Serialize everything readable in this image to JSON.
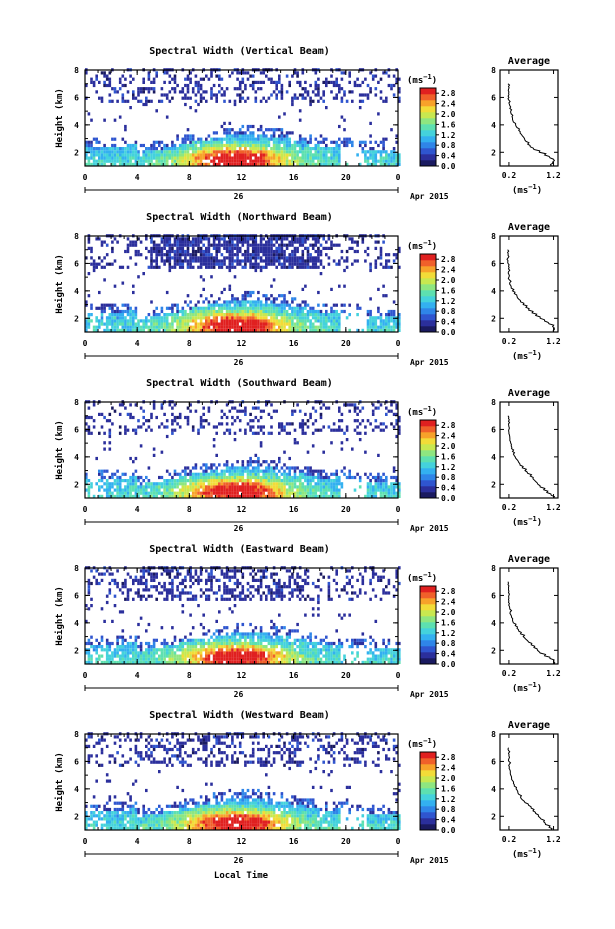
{
  "figure": {
    "ylabel": "Height (km)",
    "colorbar_unit_base": "(ms",
    "colorbar_unit_exp": "−1",
    "colorbar_unit_close": ")",
    "date_label": "Apr 2015",
    "day_label": "26",
    "xlabel": "Local Time",
    "average_title": "Average",
    "average_unit_base": "(ms",
    "average_unit_exp": "−1",
    "average_unit_close": ")"
  },
  "colors": {
    "colormap": [
      "#1a1a60",
      "#2b2f9c",
      "#2f55cf",
      "#2f85e8",
      "#33b0f0",
      "#44d2dc",
      "#5de0b0",
      "#8ee680",
      "#c8e850",
      "#f2dc38",
      "#f7a22a",
      "#f0602a",
      "#e02020"
    ]
  },
  "chart_data": [
    {
      "type": "heatmap",
      "title": "Spectral Width (Vertical Beam)",
      "x_range": [
        0,
        24
      ],
      "x_ticks": [
        "0",
        "4",
        "8",
        "12",
        "16",
        "20",
        "0"
      ],
      "y_range": [
        1,
        8
      ],
      "y_ticks": [
        "2",
        "4",
        "6",
        "8"
      ],
      "colorbar_ticks": [
        "0.0",
        "0.4",
        "0.8",
        "1.2",
        "1.6",
        "2.0",
        "2.4",
        "2.8"
      ],
      "colorbar_range": [
        0,
        3.0
      ],
      "average_profile": {
        "title": "Average",
        "x_ticks": [
          "0.2",
          "1.2"
        ],
        "y_ticks": [
          "2",
          "4",
          "6",
          "8"
        ],
        "height_km": [
          1.0,
          1.2,
          1.4,
          1.6,
          1.8,
          2.0,
          2.2,
          2.4,
          2.6,
          2.8,
          3.0,
          3.2,
          3.4,
          3.6,
          3.8,
          4.0,
          4.2,
          4.4,
          4.6,
          4.8,
          5.0,
          5.2,
          5.4,
          5.6,
          5.8,
          6.0,
          6.2,
          6.4,
          6.6,
          6.8,
          7.0
        ],
        "width_ms": [
          1.15,
          1.18,
          1.22,
          1.12,
          1.0,
          0.88,
          0.76,
          0.68,
          0.62,
          0.58,
          0.55,
          0.5,
          0.45,
          0.42,
          0.38,
          0.35,
          0.3,
          0.28,
          0.27,
          0.25,
          0.24,
          0.22,
          0.22,
          0.2,
          0.2,
          0.2,
          0.2,
          0.2,
          0.19,
          0.19,
          0.18
        ]
      }
    },
    {
      "type": "heatmap",
      "title": "Spectral Width (Northward Beam)",
      "x_range": [
        0,
        24
      ],
      "x_ticks": [
        "0",
        "4",
        "8",
        "12",
        "16",
        "20",
        "0"
      ],
      "y_range": [
        1,
        8
      ],
      "y_ticks": [
        "2",
        "4",
        "6",
        "8"
      ],
      "colorbar_ticks": [
        "0.0",
        "0.4",
        "0.8",
        "1.2",
        "1.6",
        "2.0",
        "2.4",
        "2.8"
      ],
      "colorbar_range": [
        0,
        3.0
      ],
      "average_profile": {
        "title": "Average",
        "x_ticks": [
          "0.2",
          "1.2"
        ],
        "y_ticks": [
          "2",
          "4",
          "6",
          "8"
        ],
        "height_km": [
          1.0,
          1.2,
          1.4,
          1.6,
          1.8,
          2.0,
          2.2,
          2.4,
          2.6,
          2.8,
          3.0,
          3.2,
          3.4,
          3.6,
          3.8,
          4.0,
          4.2,
          4.4,
          4.6,
          4.8,
          5.0,
          5.2,
          5.4,
          5.6,
          5.8,
          6.0,
          6.2,
          6.4,
          6.6,
          6.8,
          7.0
        ],
        "width_ms": [
          1.2,
          1.22,
          1.18,
          1.1,
          1.0,
          0.9,
          0.8,
          0.72,
          0.64,
          0.58,
          0.52,
          0.46,
          0.42,
          0.38,
          0.32,
          0.28,
          0.25,
          0.24,
          0.22,
          0.21,
          0.2,
          0.2,
          0.19,
          0.19,
          0.19,
          0.18,
          0.18,
          0.18,
          0.18,
          0.17,
          0.17
        ]
      }
    },
    {
      "type": "heatmap",
      "title": "Spectral Width (Southward Beam)",
      "x_range": [
        0,
        24
      ],
      "x_ticks": [
        "0",
        "4",
        "8",
        "12",
        "16",
        "20",
        "0"
      ],
      "y_range": [
        1,
        8
      ],
      "y_ticks": [
        "2",
        "4",
        "6",
        "8"
      ],
      "colorbar_ticks": [
        "0.0",
        "0.4",
        "0.8",
        "1.2",
        "1.6",
        "2.0",
        "2.4",
        "2.8"
      ],
      "colorbar_range": [
        0,
        3.0
      ],
      "average_profile": {
        "title": "Average",
        "x_ticks": [
          "0.2",
          "1.2"
        ],
        "y_ticks": [
          "2",
          "4",
          "6",
          "8"
        ],
        "height_km": [
          1.0,
          1.2,
          1.4,
          1.6,
          1.8,
          2.0,
          2.2,
          2.4,
          2.6,
          2.8,
          3.0,
          3.2,
          3.4,
          3.6,
          3.8,
          4.0,
          4.2,
          4.4,
          4.6,
          4.8,
          5.0,
          5.2,
          5.4,
          5.6,
          5.8,
          6.0,
          6.2,
          6.4,
          6.6,
          6.8,
          7.0
        ],
        "width_ms": [
          1.2,
          1.15,
          1.05,
          0.98,
          0.9,
          0.85,
          0.8,
          0.74,
          0.68,
          0.62,
          0.56,
          0.5,
          0.45,
          0.42,
          0.38,
          0.34,
          0.3,
          0.28,
          0.26,
          0.25,
          0.24,
          0.22,
          0.22,
          0.21,
          0.2,
          0.2,
          0.2,
          0.19,
          0.19,
          0.19,
          0.18
        ]
      }
    },
    {
      "type": "heatmap",
      "title": "Spectral Width (Eastward Beam)",
      "x_range": [
        0,
        24
      ],
      "x_ticks": [
        "0",
        "4",
        "8",
        "12",
        "16",
        "20",
        "0"
      ],
      "y_range": [
        1,
        8
      ],
      "y_ticks": [
        "2",
        "4",
        "6",
        "8"
      ],
      "colorbar_ticks": [
        "0.0",
        "0.4",
        "0.8",
        "1.2",
        "1.6",
        "2.0",
        "2.4",
        "2.8"
      ],
      "colorbar_range": [
        0,
        3.0
      ],
      "average_profile": {
        "title": "Average",
        "x_ticks": [
          "0.2",
          "1.2"
        ],
        "y_ticks": [
          "2",
          "4",
          "6",
          "8"
        ],
        "height_km": [
          1.0,
          1.2,
          1.4,
          1.6,
          1.8,
          2.0,
          2.2,
          2.4,
          2.6,
          2.8,
          3.0,
          3.2,
          3.4,
          3.6,
          3.8,
          4.0,
          4.2,
          4.4,
          4.6,
          4.8,
          5.0,
          5.2,
          5.4,
          5.6,
          5.8,
          6.0,
          6.2,
          6.4,
          6.6,
          6.8,
          7.0
        ],
        "width_ms": [
          1.22,
          1.2,
          1.12,
          1.0,
          0.9,
          0.84,
          0.76,
          0.7,
          0.64,
          0.58,
          0.52,
          0.46,
          0.42,
          0.38,
          0.34,
          0.3,
          0.28,
          0.26,
          0.24,
          0.23,
          0.22,
          0.21,
          0.21,
          0.2,
          0.2,
          0.2,
          0.19,
          0.19,
          0.19,
          0.18,
          0.18
        ]
      }
    },
    {
      "type": "heatmap",
      "title": "Spectral Width (Westward Beam)",
      "x_range": [
        0,
        24
      ],
      "x_ticks": [
        "0",
        "4",
        "8",
        "12",
        "16",
        "20",
        "0"
      ],
      "y_range": [
        1,
        8
      ],
      "y_ticks": [
        "2",
        "4",
        "6",
        "8"
      ],
      "colorbar_ticks": [
        "0.0",
        "0.4",
        "0.8",
        "1.2",
        "1.6",
        "2.0",
        "2.4",
        "2.8"
      ],
      "colorbar_range": [
        0,
        3.0
      ],
      "average_profile": {
        "title": "Average",
        "x_ticks": [
          "0.2",
          "1.2"
        ],
        "y_ticks": [
          "2",
          "4",
          "6",
          "8"
        ],
        "height_km": [
          1.0,
          1.2,
          1.4,
          1.6,
          1.8,
          2.0,
          2.2,
          2.4,
          2.6,
          2.8,
          3.0,
          3.2,
          3.4,
          3.6,
          3.8,
          4.0,
          4.2,
          4.4,
          4.6,
          4.8,
          5.0,
          5.2,
          5.4,
          5.6,
          5.8,
          6.0,
          6.2,
          6.4,
          6.6,
          6.8,
          7.0
        ],
        "width_ms": [
          1.15,
          1.1,
          1.02,
          0.98,
          0.92,
          0.86,
          0.8,
          0.74,
          0.7,
          0.64,
          0.56,
          0.5,
          0.46,
          0.42,
          0.4,
          0.36,
          0.32,
          0.3,
          0.28,
          0.26,
          0.24,
          0.23,
          0.22,
          0.21,
          0.21,
          0.2,
          0.2,
          0.2,
          0.19,
          0.19,
          0.19
        ]
      }
    }
  ]
}
